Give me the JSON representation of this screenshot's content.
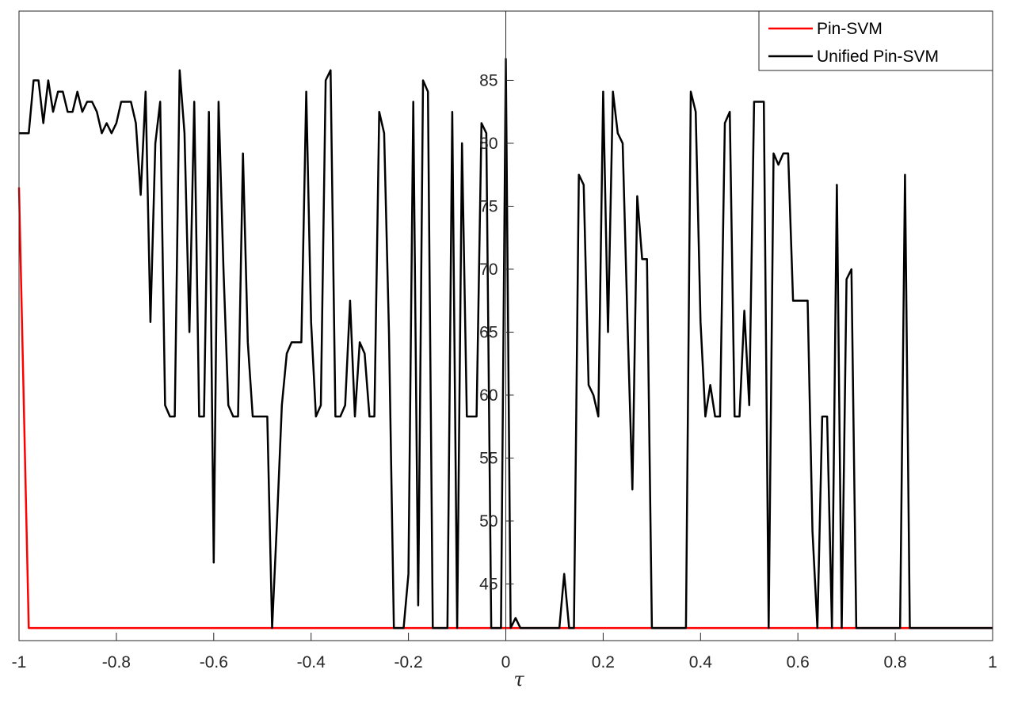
{
  "chart_data": {
    "type": "line",
    "title": "",
    "xlabel": "τ",
    "ylabel": "",
    "xlim": [
      -1,
      1
    ],
    "ylim": [
      40.5,
      90.5
    ],
    "grid": false,
    "legend_position": "top-right",
    "x_ticks": [
      "-1",
      "-0.8",
      "-0.6",
      "-0.4",
      "-0.2",
      "0",
      "0.2",
      "0.4",
      "0.6",
      "0.8",
      "1"
    ],
    "y_ticks": [
      "45",
      "50",
      "55",
      "60",
      "65",
      "70",
      "75",
      "80",
      "85"
    ],
    "colors": {
      "pin_svm": "#ff0000",
      "unified_pin_svm": "#000000"
    },
    "series": [
      {
        "name": "Pin-SVM",
        "color": "#ff0000",
        "points": [
          [
            -1,
            76.5
          ],
          [
            -0.98,
            41.5
          ],
          [
            1,
            41.5
          ]
        ]
      },
      {
        "name": "Unified Pin-SVM",
        "color": "#000000",
        "points": [
          [
            -1,
            80.8
          ],
          [
            -0.98,
            80.8
          ],
          [
            -0.97,
            85
          ],
          [
            -0.96,
            85
          ],
          [
            -0.95,
            81.6
          ],
          [
            -0.94,
            85
          ],
          [
            -0.93,
            82.5
          ],
          [
            -0.92,
            84.1
          ],
          [
            -0.91,
            84.1
          ],
          [
            -0.9,
            82.5
          ],
          [
            -0.89,
            82.5
          ],
          [
            -0.88,
            84.1
          ],
          [
            -0.87,
            82.5
          ],
          [
            -0.86,
            83.3
          ],
          [
            -0.85,
            83.3
          ],
          [
            -0.84,
            82.5
          ],
          [
            -0.83,
            80.8
          ],
          [
            -0.82,
            81.6
          ],
          [
            -0.81,
            80.8
          ],
          [
            -0.8,
            81.6
          ],
          [
            -0.79,
            83.3
          ],
          [
            -0.78,
            83.3
          ],
          [
            -0.77,
            83.3
          ],
          [
            -0.76,
            81.6
          ],
          [
            -0.75,
            75.9
          ],
          [
            -0.74,
            84.1
          ],
          [
            -0.73,
            65.8
          ],
          [
            -0.72,
            80
          ],
          [
            -0.71,
            83.3
          ],
          [
            -0.7,
            59.2
          ],
          [
            -0.69,
            58.3
          ],
          [
            -0.68,
            58.3
          ],
          [
            -0.67,
            85.8
          ],
          [
            -0.66,
            80.8
          ],
          [
            -0.65,
            65
          ],
          [
            -0.64,
            83.3
          ],
          [
            -0.63,
            58.3
          ],
          [
            -0.62,
            58.3
          ],
          [
            -0.61,
            82.5
          ],
          [
            -0.6,
            46.7
          ],
          [
            -0.59,
            83.3
          ],
          [
            -0.58,
            70
          ],
          [
            -0.57,
            59.2
          ],
          [
            -0.56,
            58.3
          ],
          [
            -0.55,
            58.3
          ],
          [
            -0.54,
            79.2
          ],
          [
            -0.53,
            64.2
          ],
          [
            -0.52,
            58.3
          ],
          [
            -0.51,
            58.3
          ],
          [
            -0.5,
            58.3
          ],
          [
            -0.49,
            58.3
          ],
          [
            -0.48,
            41.5
          ],
          [
            -0.47,
            50
          ],
          [
            -0.46,
            59.2
          ],
          [
            -0.45,
            63.3
          ],
          [
            -0.44,
            64.2
          ],
          [
            -0.43,
            64.2
          ],
          [
            -0.42,
            64.2
          ],
          [
            -0.41,
            84.1
          ],
          [
            -0.4,
            65.8
          ],
          [
            -0.39,
            58.3
          ],
          [
            -0.38,
            59.2
          ],
          [
            -0.37,
            85
          ],
          [
            -0.36,
            85.8
          ],
          [
            -0.35,
            58.3
          ],
          [
            -0.34,
            58.3
          ],
          [
            -0.33,
            59.2
          ],
          [
            -0.32,
            67.5
          ],
          [
            -0.31,
            58.3
          ],
          [
            -0.3,
            64.2
          ],
          [
            -0.29,
            63.3
          ],
          [
            -0.28,
            58.3
          ],
          [
            -0.27,
            58.3
          ],
          [
            -0.26,
            82.5
          ],
          [
            -0.25,
            80.8
          ],
          [
            -0.24,
            65
          ],
          [
            -0.23,
            41.5
          ],
          [
            -0.22,
            41.5
          ],
          [
            -0.21,
            41.5
          ],
          [
            -0.2,
            45.8
          ],
          [
            -0.19,
            83.3
          ],
          [
            -0.18,
            43.3
          ],
          [
            -0.17,
            85
          ],
          [
            -0.16,
            84.1
          ],
          [
            -0.15,
            41.5
          ],
          [
            -0.14,
            41.5
          ],
          [
            -0.13,
            41.5
          ],
          [
            -0.12,
            41.5
          ],
          [
            -0.11,
            82.5
          ],
          [
            -0.1,
            41.5
          ],
          [
            -0.09,
            80
          ],
          [
            -0.08,
            58.3
          ],
          [
            -0.07,
            58.3
          ],
          [
            -0.06,
            58.3
          ],
          [
            -0.05,
            81.6
          ],
          [
            -0.04,
            80.8
          ],
          [
            -0.03,
            41.5
          ],
          [
            -0.02,
            41.5
          ],
          [
            -0.01,
            41.5
          ],
          [
            0,
            86.7
          ],
          [
            0.01,
            41.5
          ],
          [
            0.02,
            42.3
          ],
          [
            0.03,
            41.5
          ],
          [
            0.04,
            41.5
          ],
          [
            0.05,
            41.5
          ],
          [
            0.06,
            41.5
          ],
          [
            0.07,
            41.5
          ],
          [
            0.08,
            41.5
          ],
          [
            0.09,
            41.5
          ],
          [
            0.1,
            41.5
          ],
          [
            0.11,
            41.5
          ],
          [
            0.12,
            45.8
          ],
          [
            0.13,
            41.5
          ],
          [
            0.14,
            41.5
          ],
          [
            0.15,
            77.5
          ],
          [
            0.16,
            76.7
          ],
          [
            0.17,
            60.8
          ],
          [
            0.18,
            60
          ],
          [
            0.19,
            58.3
          ],
          [
            0.2,
            84.1
          ],
          [
            0.21,
            65
          ],
          [
            0.22,
            84.1
          ],
          [
            0.23,
            80.8
          ],
          [
            0.24,
            80
          ],
          [
            0.25,
            65.8
          ],
          [
            0.26,
            52.5
          ],
          [
            0.27,
            75.8
          ],
          [
            0.28,
            70.8
          ],
          [
            0.29,
            70.8
          ],
          [
            0.3,
            41.5
          ],
          [
            0.31,
            41.5
          ],
          [
            0.32,
            41.5
          ],
          [
            0.33,
            41.5
          ],
          [
            0.34,
            41.5
          ],
          [
            0.35,
            41.5
          ],
          [
            0.36,
            41.5
          ],
          [
            0.37,
            41.5
          ],
          [
            0.38,
            84.1
          ],
          [
            0.39,
            82.5
          ],
          [
            0.4,
            65.8
          ],
          [
            0.41,
            58.3
          ],
          [
            0.42,
            60.8
          ],
          [
            0.43,
            58.3
          ],
          [
            0.44,
            58.3
          ],
          [
            0.45,
            81.6
          ],
          [
            0.46,
            82.5
          ],
          [
            0.47,
            58.3
          ],
          [
            0.48,
            58.3
          ],
          [
            0.49,
            66.7
          ],
          [
            0.5,
            59.2
          ],
          [
            0.51,
            83.3
          ],
          [
            0.52,
            83.3
          ],
          [
            0.53,
            83.3
          ],
          [
            0.54,
            41.5
          ],
          [
            0.55,
            79.2
          ],
          [
            0.56,
            78.3
          ],
          [
            0.57,
            79.2
          ],
          [
            0.58,
            79.2
          ],
          [
            0.59,
            67.5
          ],
          [
            0.6,
            67.5
          ],
          [
            0.61,
            67.5
          ],
          [
            0.62,
            67.5
          ],
          [
            0.63,
            49.2
          ],
          [
            0.64,
            41.5
          ],
          [
            0.65,
            58.3
          ],
          [
            0.66,
            58.3
          ],
          [
            0.67,
            41.5
          ],
          [
            0.68,
            76.7
          ],
          [
            0.69,
            41.5
          ],
          [
            0.7,
            69.2
          ],
          [
            0.71,
            70
          ],
          [
            0.72,
            41.5
          ],
          [
            0.73,
            41.5
          ],
          [
            0.74,
            41.5
          ],
          [
            0.75,
            41.5
          ],
          [
            0.76,
            41.5
          ],
          [
            0.77,
            41.5
          ],
          [
            0.78,
            41.5
          ],
          [
            0.79,
            41.5
          ],
          [
            0.8,
            41.5
          ],
          [
            0.81,
            41.5
          ],
          [
            0.82,
            77.5
          ],
          [
            0.83,
            41.5
          ],
          [
            0.84,
            41.5
          ],
          [
            0.85,
            41.5
          ],
          [
            0.86,
            41.5
          ],
          [
            0.87,
            41.5
          ],
          [
            0.88,
            41.5
          ],
          [
            0.89,
            41.5
          ],
          [
            0.9,
            41.5
          ],
          [
            0.92,
            41.5
          ],
          [
            0.94,
            41.5
          ],
          [
            0.96,
            41.5
          ],
          [
            0.98,
            41.5
          ],
          [
            1,
            41.5
          ]
        ]
      }
    ]
  }
}
